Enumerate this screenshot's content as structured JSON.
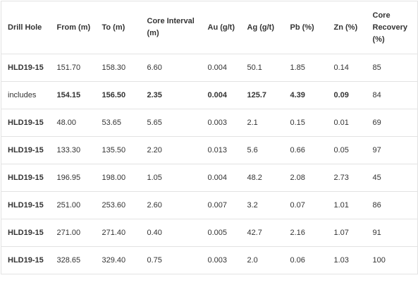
{
  "table": {
    "headers": [
      "Drill Hole",
      "From (m)",
      "To (m)",
      "Core Interval (m)",
      "Au (g/t)",
      "Ag (g/t)",
      "Pb (%)",
      "Zn (%)",
      "Core Recovery (%)"
    ],
    "rows": [
      [
        "HLD19-15",
        "151.70",
        "158.30",
        "6.60",
        "0.004",
        "50.1",
        "1.85",
        "0.14",
        "85"
      ],
      [
        "includes",
        "154.15",
        "156.50",
        "2.35",
        "0.004",
        "125.7",
        "4.39",
        "0.09",
        "84"
      ],
      [
        "HLD19-15",
        "48.00",
        "53.65",
        "5.65",
        "0.003",
        "2.1",
        "0.15",
        "0.01",
        "69"
      ],
      [
        "HLD19-15",
        "133.30",
        "135.50",
        "2.20",
        "0.013",
        "5.6",
        "0.66",
        "0.05",
        "97"
      ],
      [
        "HLD19-15",
        "196.95",
        "198.00",
        "1.05",
        "0.004",
        "48.2",
        "2.08",
        "2.73",
        "45"
      ],
      [
        "HLD19-15",
        "251.00",
        "253.60",
        "2.60",
        "0.007",
        "3.2",
        "0.07",
        "1.01",
        "86"
      ],
      [
        "HLD19-15",
        "271.00",
        "271.40",
        "0.40",
        "0.005",
        "42.7",
        "2.16",
        "1.07",
        "91"
      ],
      [
        "HLD19-15",
        "328.65",
        "329.40",
        "0.75",
        "0.003",
        "2.0",
        "0.06",
        "1.03",
        "100"
      ]
    ]
  }
}
